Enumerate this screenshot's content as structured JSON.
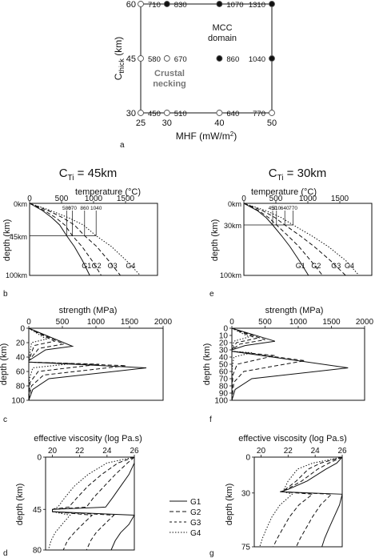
{
  "panel_a": {
    "label": "a",
    "xlabel": "MHF (mW/m",
    "xlabel_sup": "2",
    "xlabel_end": ")",
    "ylabel": "C",
    "ylabel_sub": "thick",
    "ylabel_unit": " (km)",
    "region_mcc_1": "MCC",
    "region_mcc_2": "domain",
    "region_crust_1": "Crustal",
    "region_crust_2": "necking",
    "colors": {
      "mcc": "#111111",
      "crust": "#777777"
    }
  },
  "col_left": {
    "title": "C",
    "title_sub": "Ti",
    "title_rest": " = 45km"
  },
  "col_right": {
    "title": "C",
    "title_sub": "Ti",
    "title_rest": " = 30km"
  },
  "panel_b": {
    "label": "b",
    "xlabel": "temperature (°C)",
    "ylabel": "depth (km)",
    "depth_labels": [
      "0km",
      "45km",
      "100km"
    ],
    "curve_labels": [
      "G1",
      "G2",
      "G3",
      "G4"
    ]
  },
  "panel_e": {
    "label": "e",
    "xlabel": "temperature (°C)",
    "ylabel": "depth (km)",
    "depth_labels": [
      "0km",
      "30km",
      "100km"
    ],
    "curve_labels": [
      "G1",
      "G2",
      "G3",
      "G4"
    ]
  },
  "panel_c": {
    "label": "c",
    "xlabel": "strength (MPa)",
    "ylabel": "depth (km)"
  },
  "panel_f": {
    "label": "f",
    "xlabel": "strength (MPa)",
    "ylabel": "depth (km)"
  },
  "panel_d": {
    "label": "d",
    "xlabel": "effective viscosity (log Pa.s)",
    "ylabel": "depth (km)"
  },
  "panel_g": {
    "label": "g",
    "xlabel": "effective viscosity (log Pa.s)",
    "ylabel": "depth (km)"
  },
  "legend": {
    "items": [
      "G1",
      "G2",
      "G3",
      "G4"
    ]
  },
  "chart_data": [
    {
      "type": "scatter",
      "panel": "a",
      "x": [
        25,
        30,
        40,
        50
      ],
      "xlim": [
        25,
        50
      ],
      "ylim": [
        30,
        60
      ],
      "x_ticks": [
        "25",
        "30",
        "40",
        "50"
      ],
      "y_ticks": [
        "30",
        "45",
        "60"
      ],
      "points": [
        {
          "x": 25,
          "y": 60,
          "label": "710",
          "group": "crust"
        },
        {
          "x": 30,
          "y": 60,
          "label": "830",
          "group": "mcc"
        },
        {
          "x": 40,
          "y": 60,
          "label": "1070",
          "group": "mcc"
        },
        {
          "x": 50,
          "y": 60,
          "label": "1310",
          "group": "mcc"
        },
        {
          "x": 25,
          "y": 45,
          "label": "580",
          "group": "crust"
        },
        {
          "x": 30,
          "y": 45,
          "label": "670",
          "group": "crust"
        },
        {
          "x": 40,
          "y": 45,
          "label": "860",
          "group": "mcc"
        },
        {
          "x": 50,
          "y": 45,
          "label": "1040",
          "group": "mcc"
        },
        {
          "x": 25,
          "y": 30,
          "label": "450",
          "group": "crust"
        },
        {
          "x": 30,
          "y": 30,
          "label": "510",
          "group": "crust"
        },
        {
          "x": 40,
          "y": 30,
          "label": "640",
          "group": "crust"
        },
        {
          "x": 50,
          "y": 30,
          "label": "770",
          "group": "crust"
        }
      ]
    },
    {
      "type": "line",
      "panel": "b",
      "xlim": [
        0,
        2000
      ],
      "ylim": [
        100,
        0
      ],
      "x_ticks": [
        "0",
        "500",
        "1000",
        "1500"
      ],
      "moho_depth": 45,
      "moho_labels": [
        "580",
        "670",
        "860",
        "1040"
      ],
      "moho_temps": [
        580,
        670,
        860,
        1040
      ],
      "series": [
        {
          "name": "G1",
          "style": "solid",
          "depth": [
            0,
            10,
            20,
            30,
            45,
            60,
            80,
            100
          ],
          "temp": [
            0,
            200,
            350,
            470,
            580,
            700,
            830,
            940
          ]
        },
        {
          "name": "G2",
          "style": "dashed",
          "depth": [
            0,
            10,
            20,
            30,
            45,
            60,
            80,
            100
          ],
          "temp": [
            0,
            230,
            410,
            550,
            670,
            820,
            980,
            1120
          ]
        },
        {
          "name": "G3",
          "style": "dashed",
          "depth": [
            0,
            10,
            20,
            30,
            45,
            60,
            80,
            100
          ],
          "temp": [
            0,
            290,
            520,
            700,
            860,
            1050,
            1240,
            1420
          ]
        },
        {
          "name": "G4",
          "style": "dotted",
          "depth": [
            0,
            10,
            20,
            30,
            45,
            60,
            80,
            100
          ],
          "temp": [
            0,
            330,
            610,
            840,
            1040,
            1280,
            1520,
            1730
          ]
        }
      ]
    },
    {
      "type": "line",
      "panel": "e",
      "xlim": [
        0,
        2000
      ],
      "ylim": [
        100,
        0
      ],
      "x_ticks": [
        "0",
        "500",
        "1000",
        "1500"
      ],
      "moho_depth": 30,
      "moho_labels": [
        "450",
        "510",
        "640",
        "770"
      ],
      "moho_temps": [
        450,
        510,
        640,
        770
      ],
      "series": [
        {
          "name": "G1",
          "style": "solid",
          "depth": [
            0,
            10,
            20,
            30,
            45,
            60,
            80,
            100
          ],
          "temp": [
            0,
            210,
            350,
            450,
            590,
            720,
            870,
            1010
          ]
        },
        {
          "name": "G2",
          "style": "dashed",
          "depth": [
            0,
            10,
            20,
            30,
            45,
            60,
            80,
            100
          ],
          "temp": [
            0,
            230,
            390,
            510,
            690,
            860,
            1050,
            1230
          ]
        },
        {
          "name": "G3",
          "style": "dashed",
          "depth": [
            0,
            10,
            20,
            30,
            45,
            60,
            80,
            100
          ],
          "temp": [
            0,
            290,
            490,
            640,
            880,
            1100,
            1360,
            1590
          ]
        },
        {
          "name": "G4",
          "style": "dotted",
          "depth": [
            0,
            10,
            20,
            30,
            45,
            60,
            80,
            100
          ],
          "temp": [
            0,
            340,
            590,
            770,
            1060,
            1320,
            1600,
            1800
          ]
        }
      ]
    },
    {
      "type": "line",
      "panel": "c",
      "xlim": [
        0,
        2000
      ],
      "ylim": [
        100,
        0
      ],
      "x_ticks": [
        "0",
        "500",
        "1000",
        "1500",
        "2000"
      ],
      "y_ticks": [
        "0",
        "20",
        "40",
        "60",
        "80",
        "100"
      ],
      "series": [
        {
          "name": "G1",
          "style": "solid",
          "depth": [
            0,
            25,
            30,
            45,
            47,
            55,
            70,
            85,
            100
          ],
          "strength": [
            0,
            650,
            250,
            0,
            0,
            1750,
            300,
            60,
            0
          ]
        },
        {
          "name": "G2",
          "style": "dashed",
          "depth": [
            0,
            22,
            28,
            45,
            47,
            52,
            65,
            80,
            100
          ],
          "strength": [
            0,
            520,
            150,
            0,
            0,
            1450,
            220,
            40,
            0
          ]
        },
        {
          "name": "G3",
          "style": "dashed",
          "depth": [
            0,
            18,
            24,
            45,
            47,
            50,
            60,
            75,
            100
          ],
          "strength": [
            0,
            380,
            80,
            0,
            0,
            1050,
            140,
            20,
            0
          ]
        },
        {
          "name": "G4",
          "style": "dotted",
          "depth": [
            0,
            15,
            20,
            45,
            47,
            49,
            55,
            70,
            100
          ],
          "strength": [
            0,
            260,
            40,
            0,
            0,
            650,
            60,
            10,
            0
          ]
        }
      ]
    },
    {
      "type": "line",
      "panel": "f",
      "xlim": [
        0,
        2000
      ],
      "ylim": [
        100,
        0
      ],
      "x_ticks": [
        "0",
        "500",
        "1000",
        "1500",
        "2000"
      ],
      "y_ticks": [
        "0",
        "10",
        "20",
        "30",
        "40",
        "50",
        "60",
        "70",
        "80",
        "90",
        "100"
      ],
      "series": [
        {
          "name": "G1",
          "style": "solid",
          "depth": [
            0,
            18,
            24,
            30,
            32,
            55,
            70,
            85,
            100
          ],
          "strength": [
            0,
            650,
            200,
            0,
            0,
            1750,
            300,
            50,
            0
          ]
        },
        {
          "name": "G2",
          "style": "dashed",
          "depth": [
            0,
            16,
            22,
            30,
            32,
            45,
            60,
            75,
            100
          ],
          "strength": [
            0,
            500,
            120,
            0,
            0,
            1100,
            180,
            30,
            0
          ]
        },
        {
          "name": "G3",
          "style": "dashed",
          "depth": [
            0,
            14,
            20,
            30,
            32,
            38,
            50,
            65,
            100
          ],
          "strength": [
            0,
            370,
            70,
            0,
            0,
            650,
            80,
            15,
            0
          ]
        },
        {
          "name": "G4",
          "style": "dotted",
          "depth": [
            0,
            12,
            18,
            30,
            32,
            34,
            40,
            55,
            100
          ],
          "strength": [
            0,
            260,
            30,
            0,
            0,
            300,
            30,
            5,
            0
          ]
        }
      ]
    },
    {
      "type": "line",
      "panel": "d",
      "xlim": [
        19.5,
        26
      ],
      "ylim": [
        80,
        0
      ],
      "x_ticks": [
        "20",
        "22",
        "24",
        "26"
      ],
      "y_ticks": [
        "0",
        "45",
        "80"
      ],
      "series": [
        {
          "name": "G1",
          "style": "solid",
          "depth": [
            0,
            5,
            15,
            25,
            35,
            43,
            45,
            47,
            50,
            58,
            65,
            72,
            80
          ],
          "visc": [
            26,
            26,
            25.6,
            25.0,
            24.4,
            23.9,
            20,
            20,
            26,
            25.6,
            25.0,
            24.6,
            24.3
          ]
        },
        {
          "name": "G2",
          "style": "dashed",
          "depth": [
            0,
            5,
            15,
            25,
            35,
            43,
            45,
            47,
            50,
            58,
            65,
            72,
            80
          ],
          "visc": [
            26,
            25.5,
            24.6,
            23.8,
            23.0,
            22.5,
            20,
            20,
            24.5,
            23.8,
            23.2,
            22.8,
            22.5
          ]
        },
        {
          "name": "G3",
          "style": "dashed",
          "depth": [
            0,
            5,
            15,
            25,
            35,
            43,
            45,
            47,
            50,
            58,
            65,
            72,
            80
          ],
          "visc": [
            26,
            24.8,
            23.6,
            22.6,
            21.8,
            21.2,
            20,
            20,
            22.9,
            22.2,
            21.6,
            21.1,
            20.8
          ]
        },
        {
          "name": "G4",
          "style": "dotted",
          "depth": [
            0,
            5,
            15,
            25,
            35,
            43,
            45,
            47,
            50,
            58,
            65,
            72,
            80
          ],
          "visc": [
            26,
            24.0,
            22.6,
            21.6,
            20.9,
            20.4,
            20,
            20,
            21.3,
            20.7,
            20.2,
            19.9,
            19.7
          ]
        }
      ]
    },
    {
      "type": "line",
      "panel": "g",
      "xlim": [
        19.5,
        26
      ],
      "ylim": [
        75,
        0
      ],
      "x_ticks": [
        "20",
        "22",
        "24",
        "26"
      ],
      "y_ticks": [
        "0",
        "30",
        "75"
      ],
      "series": [
        {
          "name": "G1",
          "style": "solid",
          "depth": [
            0,
            5,
            10,
            20,
            27,
            29,
            31,
            40,
            50,
            60,
            68,
            75
          ],
          "visc": [
            26,
            25.6,
            24.8,
            23.4,
            22.0,
            21.4,
            26,
            25.8,
            25.4,
            25.0,
            24.7,
            24.5
          ]
        },
        {
          "name": "G2",
          "style": "dashed",
          "depth": [
            0,
            5,
            10,
            20,
            27,
            29,
            31,
            40,
            50,
            60,
            68,
            75
          ],
          "visc": [
            26,
            25.0,
            24.2,
            23.0,
            21.9,
            21.5,
            25.2,
            24.4,
            23.8,
            23.3,
            22.9,
            22.6
          ]
        },
        {
          "name": "G3",
          "style": "dashed",
          "depth": [
            0,
            5,
            10,
            20,
            27,
            29,
            31,
            40,
            50,
            60,
            68,
            75
          ],
          "visc": [
            26,
            24.4,
            23.5,
            22.6,
            21.8,
            21.6,
            23.8,
            22.8,
            22.1,
            21.6,
            21.2,
            20.9
          ]
        },
        {
          "name": "G4",
          "style": "dotted",
          "depth": [
            0,
            5,
            10,
            20,
            27,
            29,
            31,
            40,
            50,
            60,
            68,
            75
          ],
          "visc": [
            26,
            23.8,
            22.7,
            22.0,
            21.7,
            21.7,
            22.3,
            21.4,
            20.8,
            20.4,
            20.1,
            19.9
          ]
        }
      ]
    }
  ]
}
